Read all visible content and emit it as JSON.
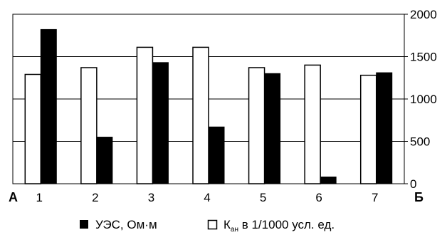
{
  "chart_data": {
    "type": "bar",
    "categories": [
      "1",
      "2",
      "3",
      "4",
      "5",
      "6",
      "7"
    ],
    "series": [
      {
        "name": "УЭС, Ом·м",
        "values": [
          1820,
          550,
          1430,
          670,
          1300,
          80,
          1310
        ],
        "color": "#000000"
      },
      {
        "name": "Кан в 1/1000 усл. ед.",
        "values": [
          1290,
          1370,
          1610,
          1610,
          1370,
          1400,
          1280
        ],
        "color": "#ffffff"
      }
    ],
    "ylim": [
      0,
      2000
    ],
    "yticks": [
      "0",
      "500",
      "1000",
      "1500",
      "2000"
    ],
    "y_axis_side": "right",
    "grid": true,
    "legend_position": "bottom",
    "endpoint_labels": {
      "left": "А",
      "right": "Б"
    },
    "legend": {
      "black_label": "УЭС, Ом·м",
      "white_label_main": "К",
      "white_label_sub": "ан",
      "white_label_rest": " в 1/1000 усл. ед."
    }
  }
}
